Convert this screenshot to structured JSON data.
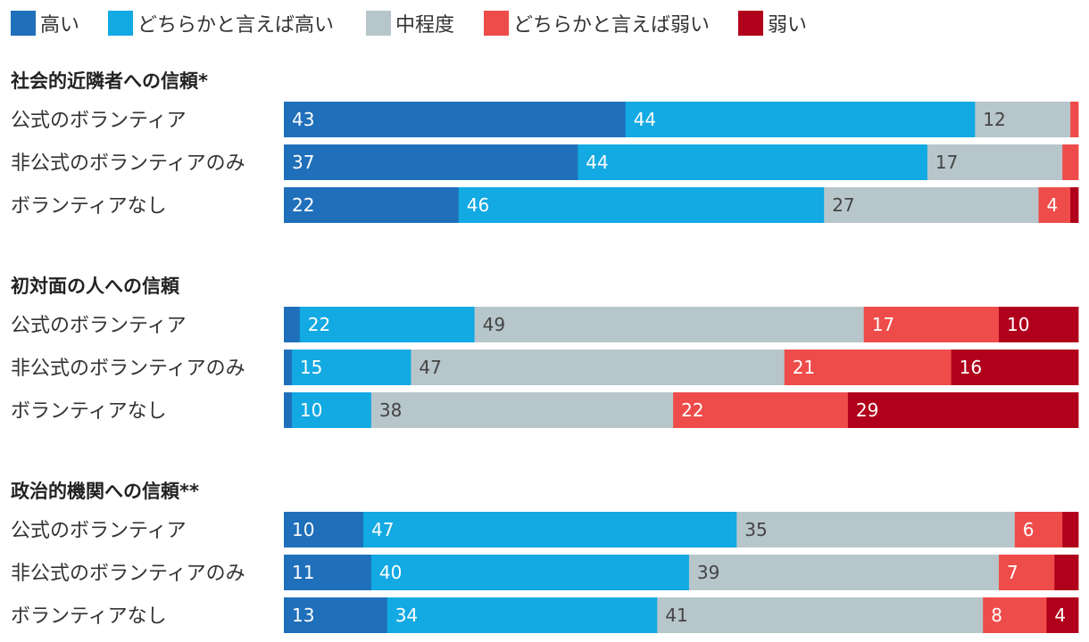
{
  "chart_data": {
    "type": "bar",
    "orientation": "horizontal",
    "stacked": true,
    "normalized_percent": true,
    "legend": [
      {
        "key": "high",
        "label": "高い",
        "color": "#1f6fba"
      },
      {
        "key": "rather_high",
        "label": "どちらかと言えば高い",
        "color": "#13a9e3"
      },
      {
        "key": "medium",
        "label": "中程度",
        "color": "#b7c6cb"
      },
      {
        "key": "rather_low",
        "label": "どちらかと言えば弱い",
        "color": "#ee4c4a"
      },
      {
        "key": "low",
        "label": "弱い",
        "color": "#b1001b"
      }
    ],
    "legend_position": "top-left",
    "groups": [
      {
        "title": "社会的近隣者への信頼*",
        "rows": [
          {
            "label": "公式のボランティア",
            "values": [
              43,
              44,
              12,
              1,
              0
            ],
            "labels": [
              "43",
              "44",
              "12",
              "",
              ""
            ]
          },
          {
            "label": "非公式のボランティアのみ",
            "values": [
              37,
              44,
              17,
              2,
              0
            ],
            "labels": [
              "37",
              "44",
              "17",
              "",
              ""
            ]
          },
          {
            "label": "ボランティアなし",
            "values": [
              22,
              46,
              27,
              4,
              1
            ],
            "labels": [
              "22",
              "46",
              "27",
              "4",
              ""
            ]
          }
        ]
      },
      {
        "title": "初対面の人への信頼",
        "rows": [
          {
            "label": "公式のボランティア",
            "values": [
              2,
              22,
              49,
              17,
              10
            ],
            "labels": [
              "",
              "22",
              "49",
              "17",
              "10"
            ]
          },
          {
            "label": "非公式のボランティアのみ",
            "values": [
              1,
              15,
              47,
              21,
              16
            ],
            "labels": [
              "",
              "15",
              "47",
              "21",
              "16"
            ]
          },
          {
            "label": "ボランティアなし",
            "values": [
              1,
              10,
              38,
              22,
              29
            ],
            "labels": [
              "",
              "10",
              "38",
              "22",
              "29"
            ]
          }
        ]
      },
      {
        "title": "政治的機関への信頼**",
        "rows": [
          {
            "label": "公式のボランティア",
            "values": [
              10,
              47,
              35,
              6,
              2
            ],
            "labels": [
              "10",
              "47",
              "35",
              "6",
              ""
            ]
          },
          {
            "label": "非公式のボランティアのみ",
            "values": [
              11,
              40,
              39,
              7,
              3
            ],
            "labels": [
              "11",
              "40",
              "39",
              "7",
              ""
            ]
          },
          {
            "label": "ボランティアなし",
            "values": [
              13,
              34,
              41,
              8,
              4
            ],
            "labels": [
              "13",
              "34",
              "41",
              "8",
              "4"
            ]
          }
        ]
      }
    ]
  }
}
